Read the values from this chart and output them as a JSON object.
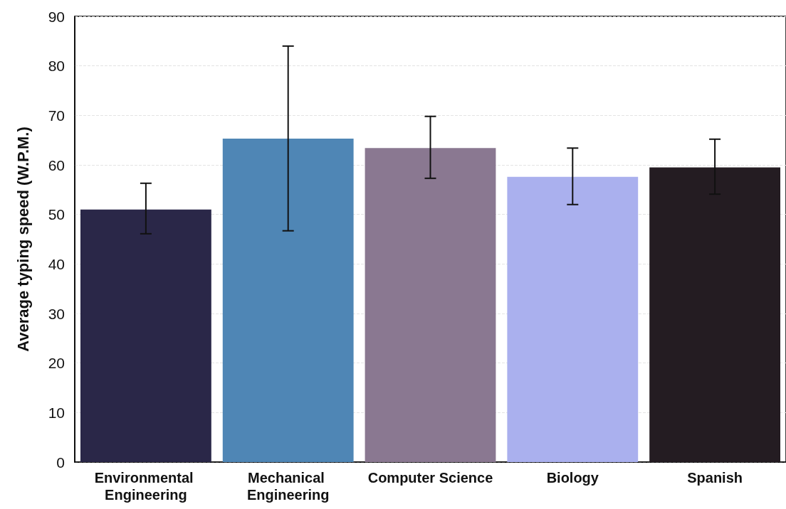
{
  "chart_data": {
    "type": "bar",
    "ylabel": "Average typing speed (W.P.M.)",
    "categories": [
      "Environmental Engineering",
      "Mechanical Engineering",
      "Computer Science",
      "Biology",
      "Spanish"
    ],
    "values": [
      51.0,
      65.3,
      63.4,
      57.6,
      59.5
    ],
    "colors": [
      "#2a2748",
      "#4f86b5",
      "#8a7891",
      "#aab0ee",
      "#241c22"
    ],
    "errors": [
      [
        46.1,
        56.3
      ],
      [
        46.7,
        84.0
      ],
      [
        57.3,
        69.8
      ],
      [
        52.0,
        63.4
      ],
      [
        54.1,
        65.2
      ]
    ],
    "ylim": [
      0,
      90
    ],
    "yticks": [
      0,
      10,
      20,
      30,
      40,
      50,
      60,
      70,
      80,
      90
    ],
    "grid": "y"
  }
}
